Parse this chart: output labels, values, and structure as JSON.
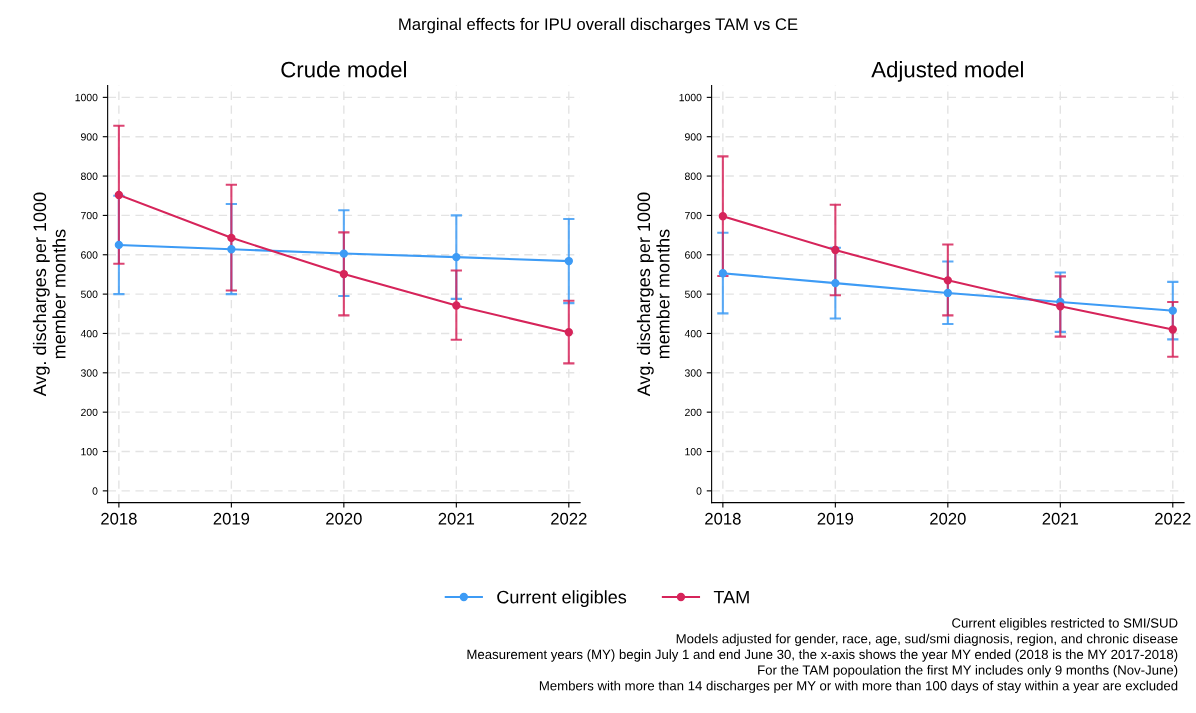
{
  "chart_data": [
    {
      "type": "line",
      "title": "Crude model",
      "ylabel": "Avg. discharges per 1000\nmember months",
      "x": [
        2018,
        2019,
        2020,
        2021,
        2022
      ],
      "xlim": [
        2017.9,
        2022.1
      ],
      "xticks": [
        2018,
        2019,
        2020,
        2021,
        2022
      ],
      "ylim": [
        -30,
        1030
      ],
      "yticks": [
        0,
        100,
        200,
        300,
        400,
        500,
        600,
        700,
        800,
        900,
        1000
      ],
      "grid": true,
      "marker": "circle",
      "legend": "bottom",
      "series": [
        {
          "name": "Current eligibles",
          "color": "#3d9bf5",
          "values": [
            625,
            614,
            603,
            594,
            584
          ],
          "errors": [
            [
              500,
              750
            ],
            [
              500,
              729
            ],
            [
              495,
              713
            ],
            [
              488,
              700
            ],
            [
              477,
              691
            ]
          ]
        },
        {
          "name": "TAM",
          "color": "#d6245a",
          "values": [
            752,
            643,
            551,
            471,
            403
          ],
          "errors": [
            [
              577,
              928
            ],
            [
              509,
              778
            ],
            [
              446,
              657
            ],
            [
              384,
              560
            ],
            [
              324,
              483
            ]
          ]
        }
      ]
    },
    {
      "type": "line",
      "title": "Adjusted model",
      "ylabel": "Avg. discharges per 1000\nmember months",
      "x": [
        2018,
        2019,
        2020,
        2021,
        2022
      ],
      "xlim": [
        2017.9,
        2022.1
      ],
      "xticks": [
        2018,
        2019,
        2020,
        2021,
        2022
      ],
      "ylim": [
        -30,
        1030
      ],
      "yticks": [
        0,
        100,
        200,
        300,
        400,
        500,
        600,
        700,
        800,
        900,
        1000
      ],
      "grid": true,
      "marker": "circle",
      "series": [
        {
          "name": "Current eligibles",
          "color": "#3d9bf5",
          "values": [
            553,
            528,
            503,
            480,
            458
          ],
          "errors": [
            [
              451,
              656
            ],
            [
              438,
              618
            ],
            [
              424,
              583
            ],
            [
              404,
              555
            ],
            [
              385,
              531
            ]
          ]
        },
        {
          "name": "TAM",
          "color": "#d6245a",
          "values": [
            698,
            612,
            535,
            469,
            410
          ],
          "errors": [
            [
              546,
              850
            ],
            [
              497,
              727
            ],
            [
              446,
              626
            ],
            [
              392,
              545
            ],
            [
              341,
              480
            ]
          ]
        }
      ]
    },
    {
      "type": "other",
      "title": "Marginal effects for IPU overall discharges TAM vs CE",
      "annotations": [
        "Current eligibles restricted to SMI/SUD",
        "Models adjusted for gender, race, age, sud/smi diagnosis, region, and chronic disease",
        "Measurement years (MY) begin July 1 and end June 30, the x-axis shows the year MY ended (2018 is the MY 2017-2018)",
        "For the TAM popoulation the first MY includes only 9 months (Nov-June)",
        "Members with more than 14 discharges per MY or with more than 100 days of stay within a year are excluded"
      ]
    }
  ]
}
